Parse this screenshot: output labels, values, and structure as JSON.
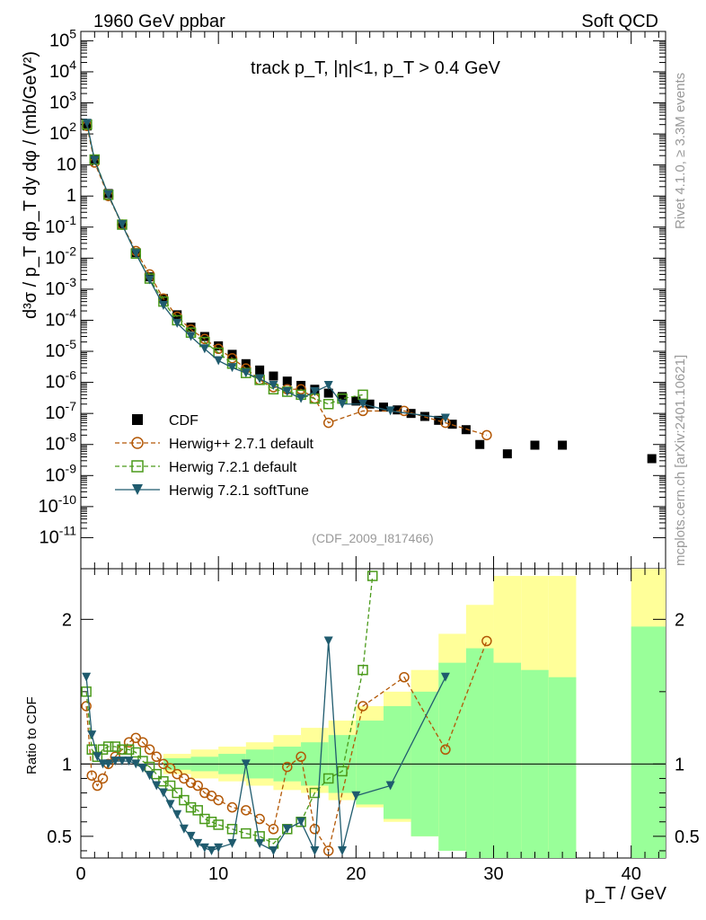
{
  "header": {
    "left_title": "1960 GeV ppbar",
    "right_title": "Soft QCD"
  },
  "side_labels": {
    "rivet": "Rivet 4.1.0, ≥ 3.3M events",
    "mcplots": "mcplots.cern.ch [arXiv:2401.10621]"
  },
  "watermark": "(CDF_2009_I817466)",
  "chart_data": {
    "type": "scatter",
    "title": "track p_T, |η|<1, p_T > 0.4 GeV",
    "xlabel": "p_T / GeV",
    "ylabel_main": "d³σ / p_T dp_T dy dφ / (mb/GeV²)",
    "ylabel_ratio": "Ratio to CDF",
    "xlim": [
      0,
      42.5
    ],
    "ylim_main_log10": [
      -12,
      5.3
    ],
    "ylim_ratio": [
      0.35,
      2.35
    ],
    "xticks": [
      0,
      10,
      20,
      30,
      40
    ],
    "yticks_main": [
      "10^{5}",
      "10^{4}",
      "10^{3}",
      "10^{2}",
      "10",
      "1",
      "10^{-1}",
      "10^{-2}",
      "10^{-3}",
      "10^{-4}",
      "10^{-5}",
      "10^{-6}",
      "10^{-7}",
      "10^{-8}",
      "10^{-9}",
      "10^{-10}",
      "10^{-11}"
    ],
    "yticks_ratio": [
      "0.5",
      "1",
      "2"
    ],
    "legend": [
      {
        "name": "CDF",
        "color": "#000000",
        "marker": "square-filled"
      },
      {
        "name": "Herwig++ 2.7.1 default",
        "color": "#b35806",
        "marker": "circle-open",
        "dash": "dashed"
      },
      {
        "name": "Herwig 7.2.1 default",
        "color": "#4a9a1a",
        "marker": "square-open",
        "dash": "dashed"
      },
      {
        "name": "Herwig 7.2.1 softTune",
        "color": "#1f5b6e",
        "marker": "triangle-down-filled",
        "dash": "solid"
      }
    ],
    "series": [
      {
        "name": "CDF",
        "x": [
          0.45,
          1,
          2,
          3,
          4,
          5,
          6,
          7,
          8,
          9,
          10,
          11,
          12,
          13,
          14,
          15,
          16,
          17,
          18,
          19,
          20,
          21,
          22,
          23,
          24,
          25,
          26,
          27,
          28,
          29,
          31,
          33,
          35,
          41.5
        ],
        "y": [
          180,
          15,
          1.2,
          0.12,
          0.015,
          0.0025,
          0.0005,
          0.00015,
          6e-05,
          3e-05,
          1.5e-05,
          8e-06,
          4e-06,
          2.5e-06,
          1.6e-06,
          1.1e-06,
          8e-07,
          6e-07,
          4.5e-07,
          3.5e-07,
          2.5e-07,
          2e-07,
          1.6e-07,
          1.3e-07,
          1e-07,
          8e-08,
          6e-08,
          4.5e-08,
          3e-08,
          1e-08,
          5e-09,
          9.5e-09,
          9.5e-09,
          3.5e-09
        ]
      },
      {
        "name": "Herwig++ 2.7.1 default",
        "x": [
          0.45,
          1,
          2,
          3,
          4,
          5,
          6,
          7,
          8,
          9,
          10,
          11,
          12,
          13,
          14,
          15,
          16,
          17,
          18,
          20.5,
          23.5,
          26.5,
          29.5
        ],
        "y": [
          180,
          12,
          1.0,
          0.12,
          0.017,
          0.003,
          0.0005,
          0.00013,
          5e-05,
          2.5e-05,
          1.2e-05,
          6e-06,
          2.8e-06,
          1.2e-06,
          7e-07,
          6e-07,
          6e-07,
          3e-07,
          5e-08,
          1.2e-07,
          1.2e-07,
          5e-08,
          2e-08
        ]
      },
      {
        "name": "Herwig 7.2.1 default",
        "x": [
          0.45,
          1,
          2,
          3,
          4,
          5,
          6,
          7,
          8,
          9,
          10,
          11,
          12,
          13,
          14,
          15,
          16,
          17,
          18,
          19,
          20.5
        ],
        "y": [
          200,
          15,
          1.1,
          0.12,
          0.014,
          0.0022,
          0.0004,
          0.0001,
          4e-05,
          2e-05,
          9e-06,
          4e-06,
          2e-06,
          1.2e-06,
          6e-07,
          5e-07,
          4e-07,
          3e-07,
          2e-07,
          3e-07,
          4e-07
        ]
      },
      {
        "name": "Herwig 7.2.1 softTune",
        "x": [
          0.45,
          1,
          2,
          3,
          4,
          5,
          6,
          7,
          8,
          9,
          10,
          11,
          12,
          13,
          14,
          15,
          16,
          17,
          18,
          19,
          20.5,
          22.5,
          26.5
        ],
        "y": [
          220,
          14,
          1.1,
          0.12,
          0.014,
          0.002,
          0.0003,
          8e-05,
          3e-05,
          1.2e-05,
          5e-06,
          3e-06,
          2e-06,
          1.3e-06,
          8e-07,
          5e-07,
          3e-07,
          5e-07,
          8e-07,
          2e-07,
          2e-07,
          1.2e-07,
          7e-08
        ]
      }
    ],
    "ratio_series": [
      {
        "name": "Herwig++ 2.7.1 default",
        "x": [
          0.4,
          0.8,
          1.2,
          1.6,
          2,
          2.5,
          3,
          3.5,
          4,
          4.5,
          5,
          5.5,
          6,
          6.5,
          7,
          7.5,
          8,
          8.5,
          9,
          9.5,
          10,
          11,
          12,
          13,
          14,
          15,
          16,
          17,
          18,
          20.5,
          23.5,
          26.5,
          29.5
        ],
        "y": [
          1.4,
          0.92,
          0.85,
          0.9,
          1.0,
          1.05,
          1.1,
          1.15,
          1.18,
          1.15,
          1.1,
          1.05,
          1.0,
          0.97,
          0.93,
          0.9,
          0.87,
          0.85,
          0.8,
          0.78,
          0.75,
          0.7,
          0.68,
          0.62,
          0.55,
          0.98,
          1.05,
          0.55,
          0.4,
          1.4,
          1.6,
          1.1,
          1.85
        ]
      },
      {
        "name": "Herwig 7.2.1 default",
        "x": [
          0.4,
          0.8,
          1.2,
          1.6,
          2,
          2.5,
          3,
          3.5,
          4,
          4.5,
          5,
          5.5,
          6,
          6.5,
          7,
          7.5,
          8,
          8.5,
          9,
          9.5,
          10,
          11,
          12,
          13,
          14,
          15,
          16,
          17,
          18,
          19,
          20.5,
          21.2
        ],
        "y": [
          1.5,
          1.1,
          1.05,
          1.1,
          1.12,
          1.12,
          1.1,
          1.1,
          1.08,
          1.02,
          0.98,
          0.93,
          0.88,
          0.85,
          0.8,
          0.75,
          0.7,
          0.68,
          0.62,
          0.6,
          0.58,
          0.55,
          0.52,
          0.5,
          0.45,
          0.55,
          0.6,
          0.8,
          0.9,
          0.95,
          1.65,
          2.3
        ]
      },
      {
        "name": "Herwig 7.2.1 softTune",
        "x": [
          0.4,
          0.8,
          1.2,
          1.6,
          2,
          2.5,
          3,
          3.5,
          4,
          4.5,
          5,
          5.5,
          6,
          6.5,
          7,
          7.5,
          8,
          8.5,
          9,
          9.5,
          10,
          11,
          12,
          13,
          14,
          15,
          16,
          17,
          18,
          19,
          20,
          22.5,
          26.5
        ],
        "y": [
          1.6,
          1.2,
          1.05,
          1.0,
          1.0,
          1.02,
          1.02,
          1.02,
          1.0,
          0.97,
          0.92,
          0.85,
          0.8,
          0.72,
          0.65,
          0.55,
          0.5,
          0.45,
          0.42,
          0.4,
          0.42,
          0.45,
          1.0,
          0.45,
          0.4,
          0.55,
          0.6,
          0.4,
          1.85,
          0.4,
          0.78,
          0.85,
          1.6
        ]
      }
    ],
    "uncertainty_bands": {
      "x_edges": [
        6,
        8,
        10,
        12,
        14,
        16,
        18,
        20,
        22,
        24,
        26,
        28,
        30,
        32,
        34,
        36
      ],
      "yellow_low": [
        0.93,
        0.9,
        0.88,
        0.85,
        0.82,
        0.8,
        0.75,
        0.7,
        0.6,
        0.5,
        0.4,
        0.35,
        0.35,
        0.35,
        0.35
      ],
      "yellow_high": [
        1.07,
        1.1,
        1.12,
        1.15,
        1.2,
        1.25,
        1.3,
        1.4,
        1.5,
        1.65,
        1.9,
        2.1,
        2.3,
        2.3,
        2.3
      ],
      "green_low": [
        0.96,
        0.95,
        0.93,
        0.9,
        0.88,
        0.85,
        0.8,
        0.72,
        0.62,
        0.5,
        0.4,
        0.35,
        0.35,
        0.35,
        0.35
      ],
      "green_high": [
        1.04,
        1.05,
        1.07,
        1.1,
        1.12,
        1.15,
        1.2,
        1.3,
        1.4,
        1.5,
        1.7,
        1.8,
        1.7,
        1.65,
        1.6
      ],
      "far_bin": {
        "x0": 40,
        "x1": 42.5,
        "yellow_high": 2.35,
        "green_high": 1.95
      }
    }
  }
}
